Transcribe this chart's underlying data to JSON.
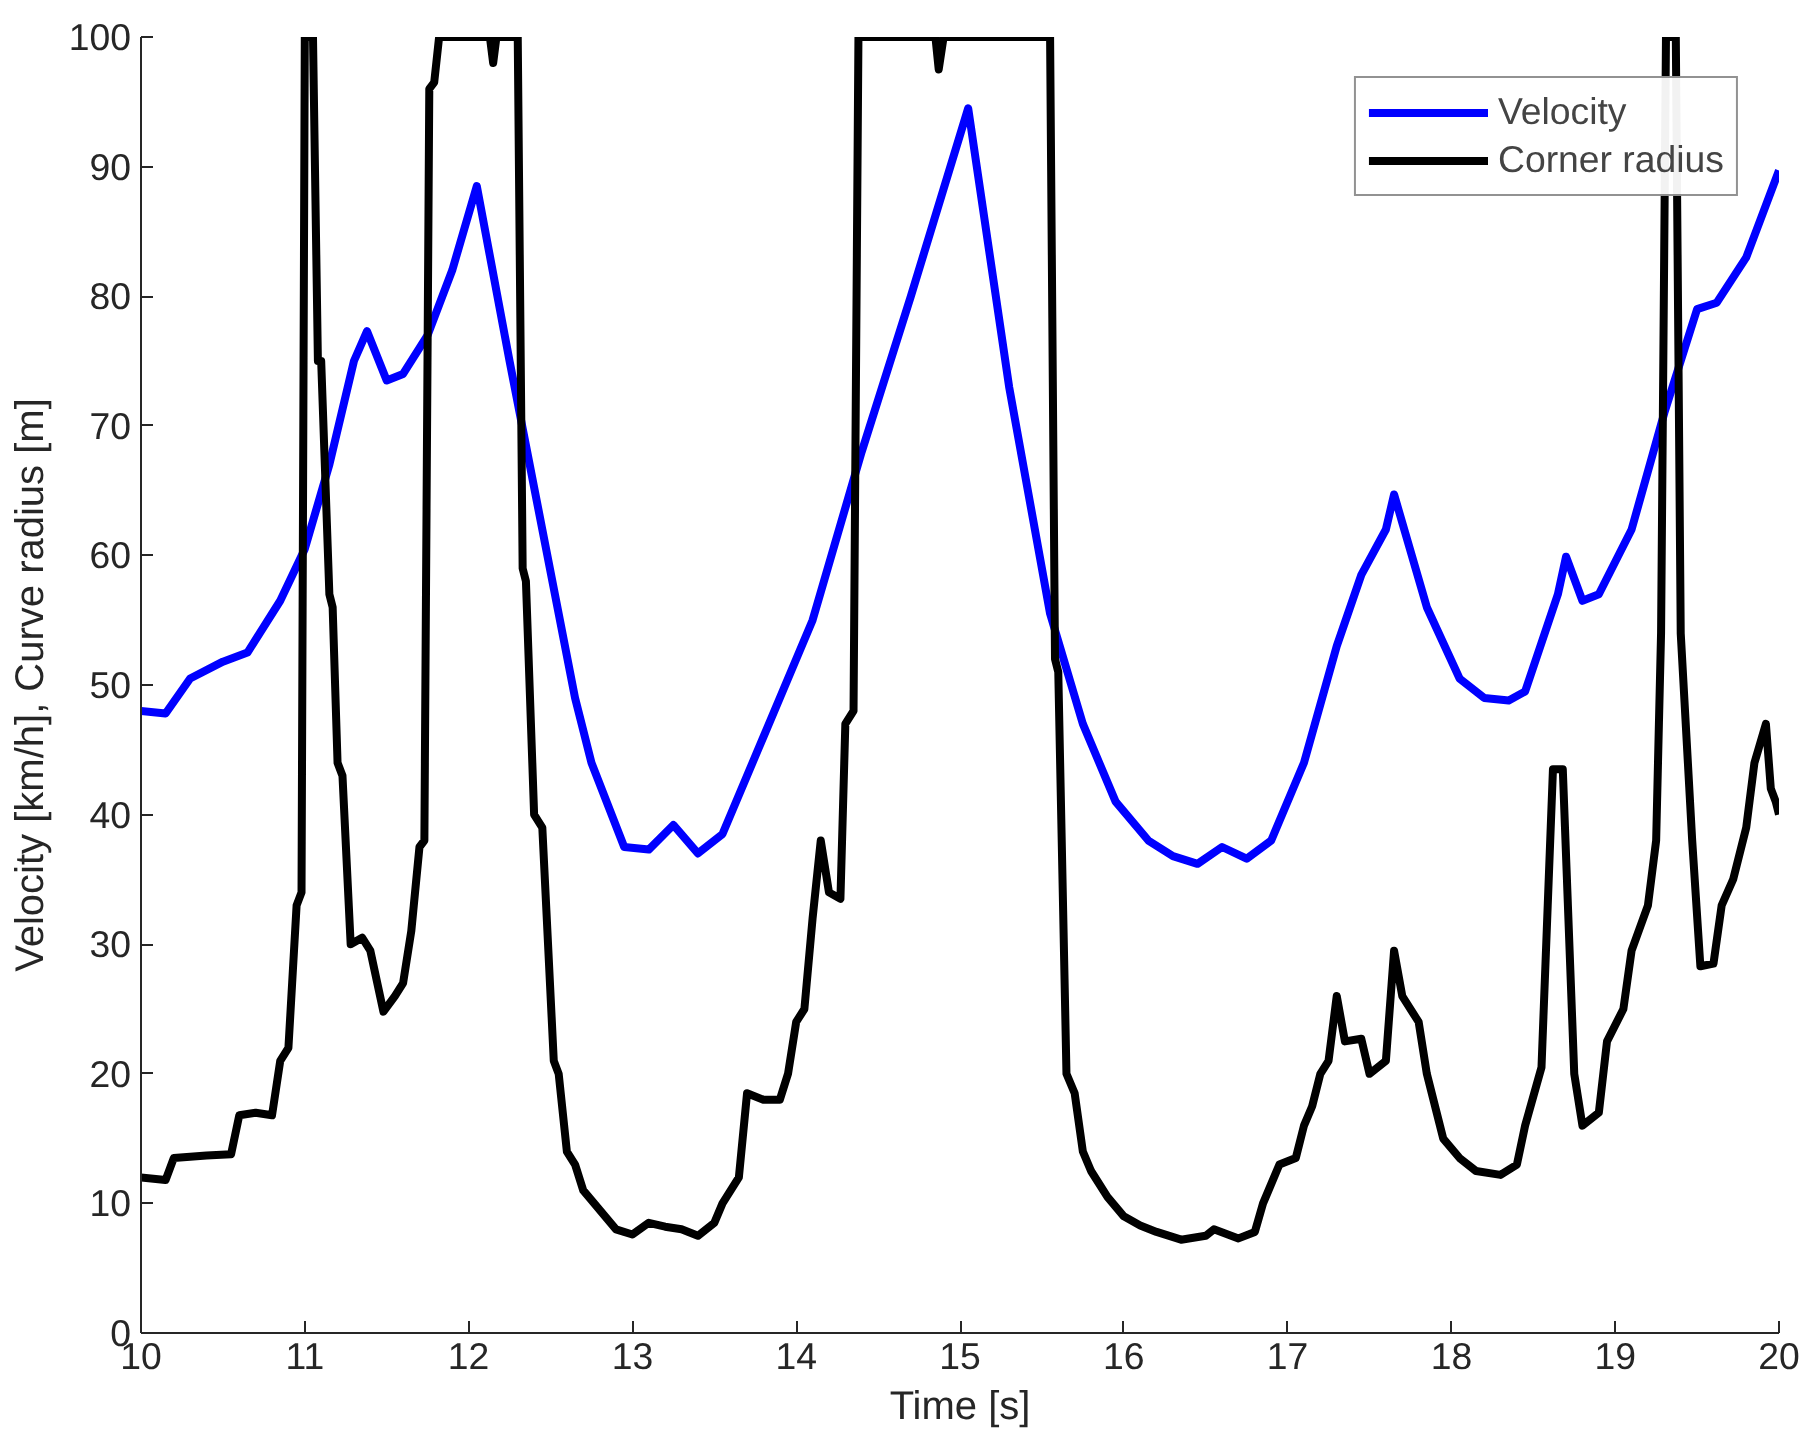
{
  "chart_data": {
    "type": "line",
    "xlabel": "Time [s]",
    "ylabel": "Velocity [km/h], Curve radius [m]",
    "xlim": [
      10,
      20
    ],
    "ylim": [
      0,
      100
    ],
    "xticks": [
      10,
      11,
      12,
      13,
      14,
      15,
      16,
      17,
      18,
      19,
      20
    ],
    "yticks": [
      0,
      10,
      20,
      30,
      40,
      50,
      60,
      70,
      80,
      90,
      100
    ],
    "grid": false,
    "legend": "top right",
    "marker": "none",
    "line_style": "solid",
    "series": [
      {
        "name": "Velocity",
        "color": "#0000ff",
        "x": [
          10,
          10.15,
          10.3,
          10.5,
          10.65,
          10.85,
          11.0,
          11.15,
          11.3,
          11.38,
          11.5,
          11.6,
          11.75,
          11.9,
          12.05,
          12.25,
          12.45,
          12.65,
          12.75,
          12.95,
          13.1,
          13.25,
          13.4,
          13.55,
          13.8,
          14.1,
          14.4,
          14.7,
          15.05,
          15.3,
          15.55,
          15.75,
          15.95,
          16.15,
          16.3,
          16.45,
          16.6,
          16.75,
          16.9,
          17.1,
          17.3,
          17.45,
          17.6,
          17.65,
          17.85,
          18.05,
          18.2,
          18.35,
          18.45,
          18.65,
          18.7,
          18.8,
          18.9,
          19.1,
          19.3,
          19.5,
          19.62,
          19.8,
          20
        ],
        "values": [
          48,
          47.8,
          50.5,
          51.8,
          52.5,
          56.5,
          60.5,
          67,
          75,
          77.3,
          73.5,
          74,
          77,
          82,
          88.5,
          75,
          62,
          49,
          44,
          37.5,
          37.3,
          39.2,
          37,
          38.5,
          46,
          55,
          68,
          80,
          94.5,
          73,
          55.5,
          47,
          41,
          38,
          36.8,
          36.2,
          37.5,
          36.6,
          38,
          44,
          53,
          58.5,
          62,
          64.7,
          56,
          50.5,
          49,
          48.8,
          49.5,
          57,
          59.9,
          56.5,
          57,
          62,
          71,
          79,
          79.5,
          83,
          89.7
        ]
      },
      {
        "name": "Corner radius",
        "color": "#000000",
        "x": [
          10,
          10.15,
          10.2,
          10.4,
          10.55,
          10.6,
          10.7,
          10.8,
          10.85,
          10.9,
          10.95,
          10.98,
          11.0,
          11.05,
          11.08,
          11.1,
          11.15,
          11.17,
          11.2,
          11.23,
          11.28,
          11.35,
          11.4,
          11.48,
          11.55,
          11.6,
          11.65,
          11.7,
          11.73,
          11.76,
          11.79,
          11.82,
          12.13,
          12.15,
          12.17,
          12.3,
          12.33,
          12.35,
          12.4,
          12.45,
          12.52,
          12.55,
          12.6,
          12.65,
          12.7,
          12.8,
          12.9,
          13.0,
          13.1,
          13.2,
          13.3,
          13.4,
          13.5,
          13.55,
          13.65,
          13.7,
          13.8,
          13.9,
          13.95,
          14.0,
          14.05,
          14.1,
          14.15,
          14.2,
          14.27,
          14.3,
          14.35,
          14.38,
          14.85,
          14.87,
          14.9,
          15.55,
          15.58,
          15.6,
          15.65,
          15.7,
          15.75,
          15.8,
          15.9,
          16.0,
          16.1,
          16.2,
          16.35,
          16.5,
          16.55,
          16.7,
          16.8,
          16.85,
          16.95,
          17.05,
          17.1,
          17.15,
          17.2,
          17.25,
          17.3,
          17.35,
          17.45,
          17.5,
          17.6,
          17.65,
          17.7,
          17.8,
          17.85,
          17.95,
          18.05,
          18.15,
          18.3,
          18.4,
          18.45,
          18.55,
          18.62,
          18.68,
          18.75,
          18.8,
          18.9,
          18.95,
          19.05,
          19.1,
          19.2,
          19.25,
          19.28,
          19.31,
          19.37,
          19.4,
          19.47,
          19.52,
          19.6,
          19.65,
          19.72,
          19.8,
          19.85,
          19.92,
          19.95,
          19.98,
          20
        ],
        "values": [
          12,
          11.8,
          13.5,
          13.7,
          13.8,
          16.8,
          17,
          16.8,
          21,
          22,
          33,
          34,
          100,
          100,
          75,
          75,
          57,
          56,
          44,
          43,
          30,
          30.5,
          29.5,
          24.8,
          26,
          27,
          31,
          37.5,
          38,
          96,
          96.5,
          100,
          100,
          98,
          100,
          100,
          59,
          58,
          40,
          39,
          21,
          20,
          14,
          13,
          11,
          9.5,
          8,
          7.6,
          8.5,
          8.2,
          8,
          7.5,
          8.5,
          10,
          12,
          18.5,
          18,
          18,
          20,
          24,
          25,
          32,
          38,
          34,
          33.5,
          47,
          48,
          100,
          100,
          97.5,
          100,
          100,
          52,
          51,
          20,
          18.5,
          14,
          12.5,
          10.5,
          9,
          8.3,
          7.8,
          7.2,
          7.5,
          8,
          7.3,
          7.8,
          10,
          13,
          13.5,
          16,
          17.5,
          20,
          21,
          26,
          22.5,
          22.7,
          20,
          21,
          29.5,
          26,
          24,
          20,
          15,
          13.5,
          12.5,
          12.2,
          13,
          16,
          20.5,
          43.5,
          43.5,
          20,
          16,
          17,
          22.5,
          25,
          29.5,
          33,
          38,
          54,
          100,
          100,
          54,
          38,
          28.3,
          28.5,
          33,
          35,
          39,
          44,
          47,
          42,
          41,
          40
        ]
      }
    ]
  }
}
